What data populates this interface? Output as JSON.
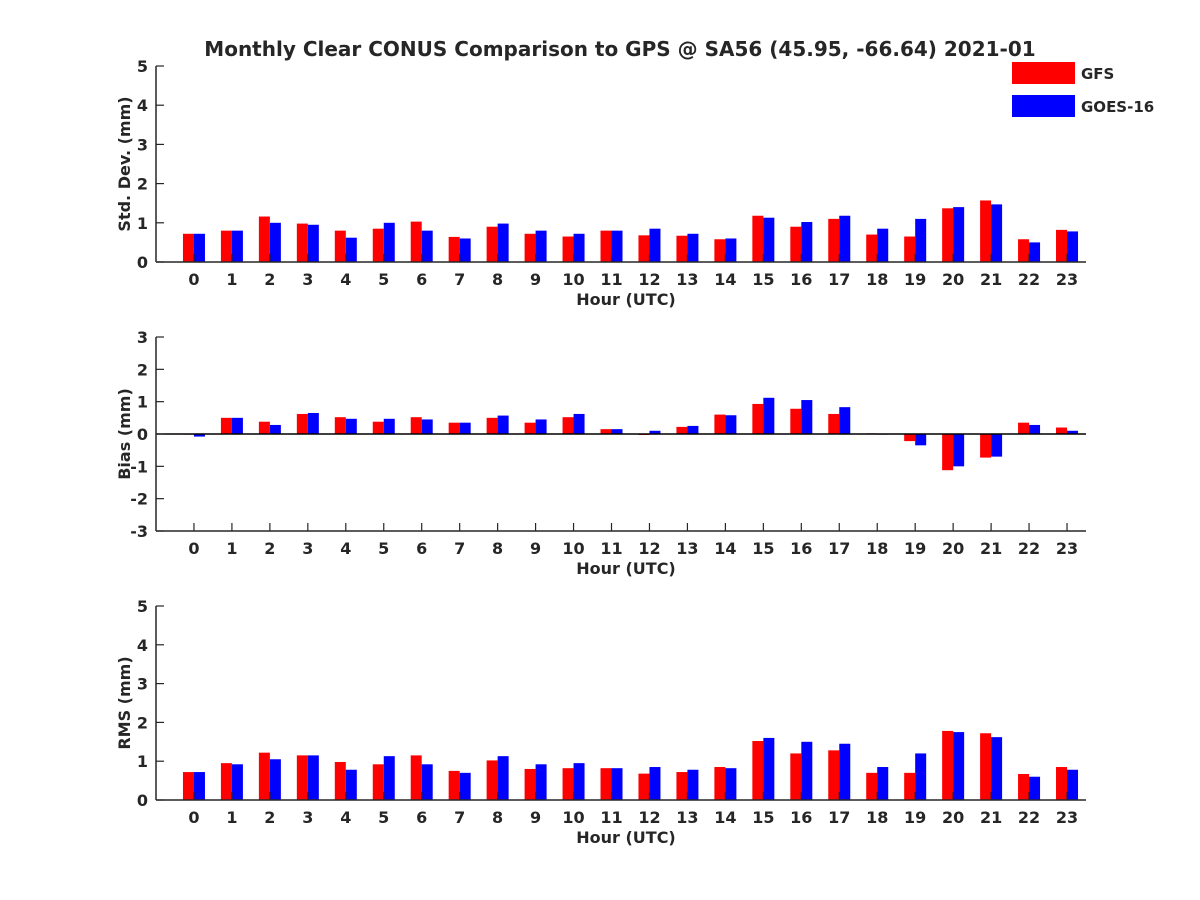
{
  "title": "Monthly Clear CONUS Comparison to GPS @ SA56 (45.95, -66.64) 2021-01",
  "legend": {
    "placement": "top-right",
    "entries": [
      {
        "name": "GFS",
        "color": "#ff0000"
      },
      {
        "name": "GOES-16",
        "color": "#0000ff"
      }
    ]
  },
  "chart_data": [
    {
      "type": "bar",
      "xlabel": "Hour (UTC)",
      "ylabel": "Std. Dev. (mm)",
      "ylim": [
        0,
        5
      ],
      "yticks": [
        0,
        1,
        2,
        3,
        4,
        5
      ],
      "categories": [
        "0",
        "1",
        "2",
        "3",
        "4",
        "5",
        "6",
        "7",
        "8",
        "9",
        "10",
        "11",
        "12",
        "13",
        "14",
        "15",
        "16",
        "17",
        "18",
        "19",
        "20",
        "21",
        "22",
        "23"
      ],
      "series": [
        {
          "name": "GFS",
          "color": "#ff0000",
          "values": [
            0.72,
            0.8,
            1.16,
            0.98,
            0.8,
            0.85,
            1.03,
            0.64,
            0.9,
            0.72,
            0.65,
            0.8,
            0.68,
            0.67,
            0.58,
            1.18,
            0.9,
            1.1,
            0.7,
            0.65,
            1.37,
            1.57,
            0.58,
            0.82
          ]
        },
        {
          "name": "GOES-16",
          "color": "#0000ff",
          "values": [
            0.72,
            0.8,
            1.0,
            0.95,
            0.62,
            1.0,
            0.8,
            0.6,
            0.98,
            0.8,
            0.72,
            0.8,
            0.85,
            0.72,
            0.6,
            1.13,
            1.02,
            1.18,
            0.85,
            1.1,
            1.4,
            1.47,
            0.5,
            0.78
          ]
        }
      ]
    },
    {
      "type": "bar",
      "xlabel": "Hour (UTC)",
      "ylabel": "Bias (mm)",
      "ylim": [
        -3,
        3
      ],
      "yticks": [
        -3,
        -2,
        -1,
        0,
        1,
        2,
        3
      ],
      "zero_line": true,
      "categories": [
        "0",
        "1",
        "2",
        "3",
        "4",
        "5",
        "6",
        "7",
        "8",
        "9",
        "10",
        "11",
        "12",
        "13",
        "14",
        "15",
        "16",
        "17",
        "18",
        "19",
        "20",
        "21",
        "22",
        "23"
      ],
      "series": [
        {
          "name": "GFS",
          "color": "#ff0000",
          "values": [
            0.0,
            0.5,
            0.38,
            0.62,
            0.52,
            0.38,
            0.52,
            0.35,
            0.5,
            0.35,
            0.52,
            0.15,
            -0.03,
            0.22,
            0.6,
            0.93,
            0.78,
            0.62,
            0.02,
            -0.22,
            -1.12,
            -0.73,
            0.35,
            0.2
          ]
        },
        {
          "name": "GOES-16",
          "color": "#0000ff",
          "values": [
            -0.08,
            0.5,
            0.28,
            0.65,
            0.47,
            0.47,
            0.45,
            0.35,
            0.57,
            0.45,
            0.62,
            0.15,
            0.1,
            0.25,
            0.58,
            1.12,
            1.05,
            0.83,
            0.0,
            -0.35,
            -1.0,
            -0.7,
            0.28,
            0.1
          ]
        }
      ]
    },
    {
      "type": "bar",
      "xlabel": "Hour (UTC)",
      "ylabel": "RMS (mm)",
      "ylim": [
        0,
        5
      ],
      "yticks": [
        0,
        1,
        2,
        3,
        4,
        5
      ],
      "categories": [
        "0",
        "1",
        "2",
        "3",
        "4",
        "5",
        "6",
        "7",
        "8",
        "9",
        "10",
        "11",
        "12",
        "13",
        "14",
        "15",
        "16",
        "17",
        "18",
        "19",
        "20",
        "21",
        "22",
        "23"
      ],
      "series": [
        {
          "name": "GFS",
          "color": "#ff0000",
          "values": [
            0.72,
            0.95,
            1.22,
            1.15,
            0.98,
            0.92,
            1.15,
            0.75,
            1.02,
            0.8,
            0.82,
            0.82,
            0.68,
            0.72,
            0.85,
            1.52,
            1.2,
            1.28,
            0.7,
            0.7,
            1.78,
            1.72,
            0.67,
            0.85
          ]
        },
        {
          "name": "GOES-16",
          "color": "#0000ff",
          "values": [
            0.72,
            0.92,
            1.05,
            1.15,
            0.78,
            1.13,
            0.92,
            0.7,
            1.13,
            0.92,
            0.95,
            0.82,
            0.85,
            0.78,
            0.82,
            1.6,
            1.5,
            1.45,
            0.85,
            1.2,
            1.75,
            1.62,
            0.6,
            0.78
          ]
        }
      ]
    }
  ]
}
